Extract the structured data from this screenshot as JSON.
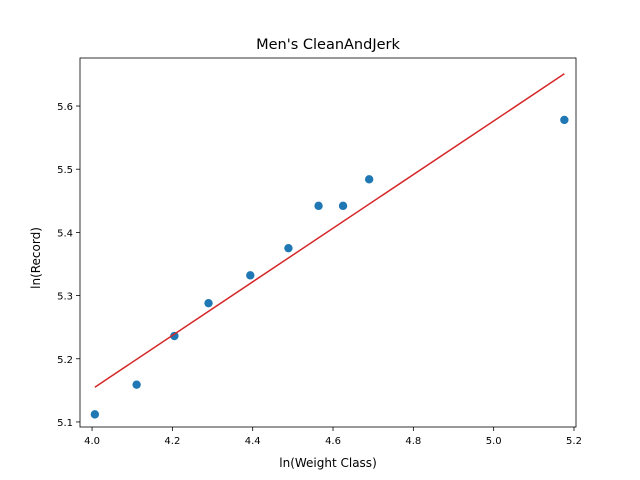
{
  "chart_data": {
    "type": "scatter",
    "title": "Men's CleanAndJerk",
    "xlabel": "ln(Weight Class)",
    "ylabel": "ln(Record)",
    "xlim": [
      3.97,
      5.205
    ],
    "ylim": [
      5.092,
      5.676
    ],
    "xticks": [
      4.0,
      4.2,
      4.4,
      4.6,
      4.8,
      5.0,
      5.2
    ],
    "yticks": [
      5.1,
      5.2,
      5.3,
      5.4,
      5.5,
      5.6
    ],
    "grid": false,
    "legend": "none",
    "series": [
      {
        "type": "scatter",
        "color": "#1f77b4",
        "x": [
          4.007,
          4.111,
          4.205,
          4.29,
          4.394,
          4.489,
          4.564,
          4.625,
          4.69,
          5.176
        ],
        "y": [
          5.112,
          5.159,
          5.236,
          5.288,
          5.332,
          5.375,
          5.442,
          5.442,
          5.484,
          5.578
        ]
      },
      {
        "type": "line",
        "color": "#d62728",
        "x": [
          4.007,
          5.176
        ],
        "y": [
          5.155,
          5.651
        ]
      }
    ]
  }
}
